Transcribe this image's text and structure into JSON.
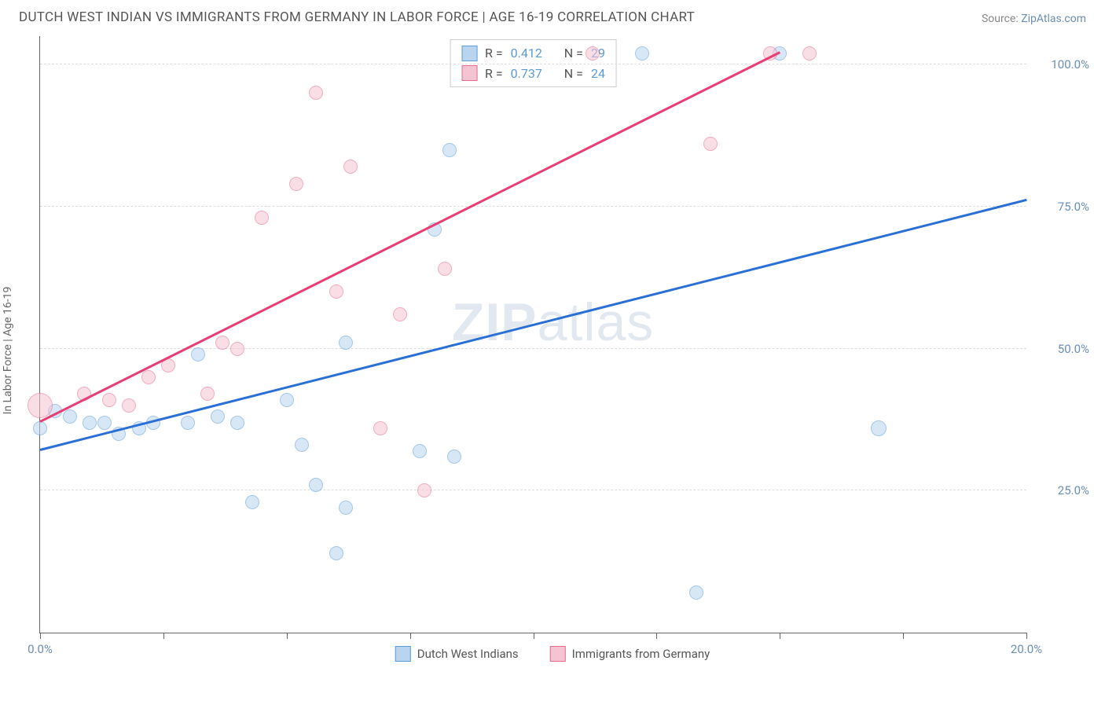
{
  "header": {
    "title": "DUTCH WEST INDIAN VS IMMIGRANTS FROM GERMANY IN LABOR FORCE | AGE 16-19 CORRELATION CHART",
    "source_label": "Source:",
    "source_link": "ZipAtlas.com"
  },
  "chart": {
    "type": "scatter",
    "y_axis_label": "In Labor Force | Age 16-19",
    "x_range": [
      0,
      20
    ],
    "y_range": [
      0,
      105
    ],
    "x_ticks": [
      0,
      2.5,
      5,
      7.5,
      10,
      12.5,
      15,
      17.5,
      20
    ],
    "x_tick_labels": {
      "0": "0.0%",
      "20": "20.0%"
    },
    "y_ticks": [
      25,
      50,
      75,
      100
    ],
    "y_tick_labels": {
      "25": "25.0%",
      "50": "50.0%",
      "75": "75.0%",
      "100": "100.0%"
    },
    "background_color": "#ffffff",
    "grid_color": "#dddddd",
    "axis_color": "#666666",
    "tick_label_color": "#6b8db5",
    "watermark": "ZIPatlas",
    "series": [
      {
        "name": "Dutch West Indians",
        "fill": "#b8d4ef",
        "stroke": "#5b9bd5",
        "fill_opacity": 0.55,
        "trend_color": "#2a6fd6",
        "trend": {
          "x0": 0,
          "y0": 32,
          "x1": 20,
          "y1": 76
        },
        "r_value": "0.412",
        "n_value": "29",
        "points": [
          {
            "x": 0.0,
            "y": 36,
            "r": 9
          },
          {
            "x": 0.3,
            "y": 39,
            "r": 9
          },
          {
            "x": 0.6,
            "y": 38,
            "r": 9
          },
          {
            "x": 1.0,
            "y": 37,
            "r": 9
          },
          {
            "x": 1.3,
            "y": 37,
            "r": 9
          },
          {
            "x": 1.6,
            "y": 35,
            "r": 9
          },
          {
            "x": 2.0,
            "y": 36,
            "r": 9
          },
          {
            "x": 2.3,
            "y": 37,
            "r": 9
          },
          {
            "x": 3.0,
            "y": 37,
            "r": 9
          },
          {
            "x": 3.2,
            "y": 49,
            "r": 9
          },
          {
            "x": 3.6,
            "y": 38,
            "r": 9
          },
          {
            "x": 4.0,
            "y": 37,
            "r": 9
          },
          {
            "x": 4.3,
            "y": 23,
            "r": 9
          },
          {
            "x": 5.0,
            "y": 41,
            "r": 9
          },
          {
            "x": 5.3,
            "y": 33,
            "r": 9
          },
          {
            "x": 5.6,
            "y": 26,
            "r": 9
          },
          {
            "x": 6.0,
            "y": 14,
            "r": 9
          },
          {
            "x": 6.2,
            "y": 22,
            "r": 9
          },
          {
            "x": 6.2,
            "y": 51,
            "r": 9
          },
          {
            "x": 7.7,
            "y": 32,
            "r": 9
          },
          {
            "x": 8.0,
            "y": 71,
            "r": 9
          },
          {
            "x": 8.3,
            "y": 85,
            "r": 9
          },
          {
            "x": 8.4,
            "y": 31,
            "r": 9
          },
          {
            "x": 12.2,
            "y": 102,
            "r": 9
          },
          {
            "x": 13.3,
            "y": 7,
            "r": 9
          },
          {
            "x": 15.0,
            "y": 102,
            "r": 9
          },
          {
            "x": 17.0,
            "y": 36,
            "r": 10
          }
        ]
      },
      {
        "name": "Immigants from Germany",
        "display_name": "Immigrants from Germany",
        "fill": "#f5c4d2",
        "stroke": "#e66a8d",
        "fill_opacity": 0.55,
        "trend_color": "#e83e74",
        "trend": {
          "x0": 0,
          "y0": 37,
          "x1": 15,
          "y1": 102
        },
        "r_value": "0.737",
        "n_value": "24",
        "points": [
          {
            "x": 0.0,
            "y": 40,
            "r": 16
          },
          {
            "x": 0.9,
            "y": 42,
            "r": 9
          },
          {
            "x": 1.4,
            "y": 41,
            "r": 9
          },
          {
            "x": 1.8,
            "y": 40,
            "r": 9
          },
          {
            "x": 2.2,
            "y": 45,
            "r": 9
          },
          {
            "x": 2.6,
            "y": 47,
            "r": 9
          },
          {
            "x": 3.4,
            "y": 42,
            "r": 9
          },
          {
            "x": 3.7,
            "y": 51,
            "r": 9
          },
          {
            "x": 4.0,
            "y": 50,
            "r": 9
          },
          {
            "x": 4.5,
            "y": 73,
            "r": 9
          },
          {
            "x": 5.2,
            "y": 79,
            "r": 9
          },
          {
            "x": 5.6,
            "y": 95,
            "r": 9
          },
          {
            "x": 6.0,
            "y": 60,
            "r": 9
          },
          {
            "x": 6.3,
            "y": 82,
            "r": 9
          },
          {
            "x": 6.9,
            "y": 36,
            "r": 9
          },
          {
            "x": 7.3,
            "y": 56,
            "r": 9
          },
          {
            "x": 7.8,
            "y": 25,
            "r": 9
          },
          {
            "x": 8.2,
            "y": 64,
            "r": 9
          },
          {
            "x": 11.2,
            "y": 102,
            "r": 9
          },
          {
            "x": 13.6,
            "y": 86,
            "r": 9
          },
          {
            "x": 14.8,
            "y": 102,
            "r": 9
          },
          {
            "x": 15.6,
            "y": 102,
            "r": 9
          }
        ]
      }
    ],
    "stats_legend": {
      "r_label": "R =",
      "n_label": "N ="
    },
    "bottom_legend": [
      {
        "label": "Dutch West Indians",
        "fill": "#b8d4ef",
        "stroke": "#5b9bd5"
      },
      {
        "label": "Immigrants from Germany",
        "fill": "#f5c4d2",
        "stroke": "#e66a8d"
      }
    ]
  }
}
